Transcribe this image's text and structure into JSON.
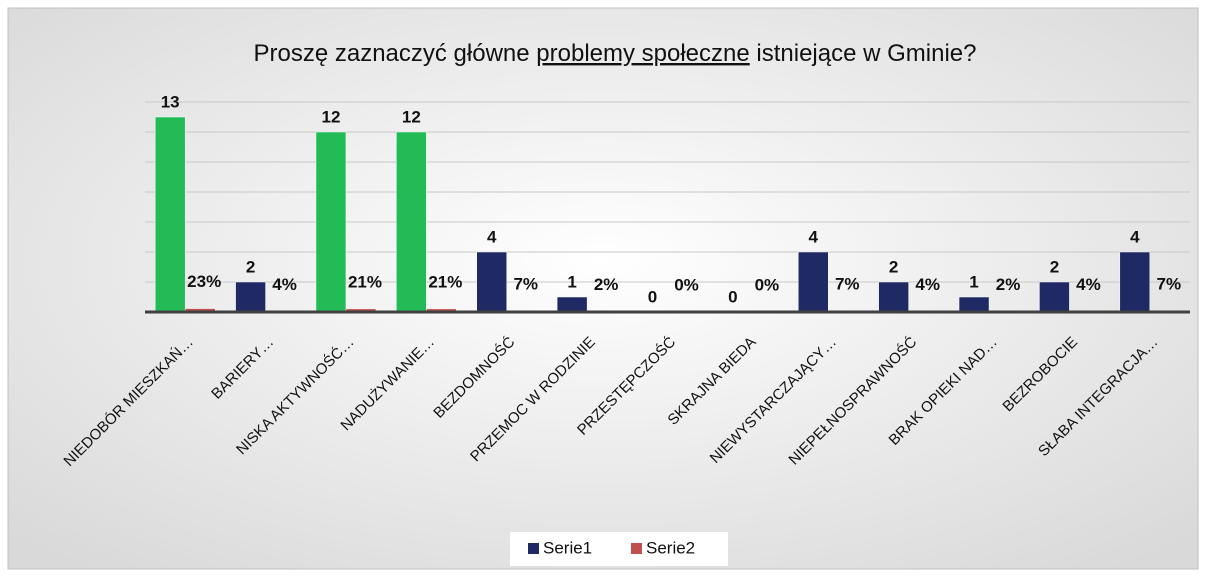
{
  "chart_data": {
    "type": "bar",
    "title": [
      "Proszę zaznaczyć główne ",
      "problemy społeczne",
      " istniejące w Gminie?"
    ],
    "categories": [
      "NIEDOBÓR MIESZKAŃ…",
      "BARIERY…",
      "NISKA AKTYWNOŚĆ…",
      "NADUŻYWANIE…",
      "BEZDOMNOŚĆ",
      "PRZEMOC W RODZINIE",
      "PRZESTĘPCZOŚĆ",
      "SKRAJNA BIEDA",
      "NIEWYSTARCZAJĄCY…",
      "NIEPEŁNOSPRAWNOŚĆ",
      "BRAK OPIEKI NAD…",
      "BEZROBOCIE",
      "SŁABA INTEGRACJA…"
    ],
    "series": [
      {
        "name": "Serie1",
        "color": "#1f2a64",
        "point_colors": [
          "#22bb55",
          "#1f2a64",
          "#22bb55",
          "#22bb55",
          "#1f2a64",
          "#1f2a64",
          "#1f2a64",
          "#1f2a64",
          "#1f2a64",
          "#1f2a64",
          "#1f2a64",
          "#1f2a64",
          "#1f2a64"
        ],
        "values": [
          13,
          2,
          12,
          12,
          4,
          1,
          0,
          0,
          4,
          2,
          1,
          2,
          4
        ]
      },
      {
        "name": "Serie2",
        "color": "#c0504d",
        "values": [
          0.23,
          0.04,
          0.21,
          0.21,
          0.07,
          0.02,
          0,
          0,
          0.07,
          0.04,
          0.02,
          0.04,
          0.07
        ],
        "value_labels": [
          "23%",
          "4%",
          "21%",
          "21%",
          "7%",
          "2%",
          "0%",
          "0%",
          "7%",
          "4%",
          "2%",
          "4%",
          "7%"
        ]
      }
    ],
    "ylim": [
      0,
      14
    ],
    "grid_lines": [
      2,
      4,
      6,
      8,
      10,
      12,
      14
    ],
    "grid": true,
    "legend": "bottom"
  }
}
